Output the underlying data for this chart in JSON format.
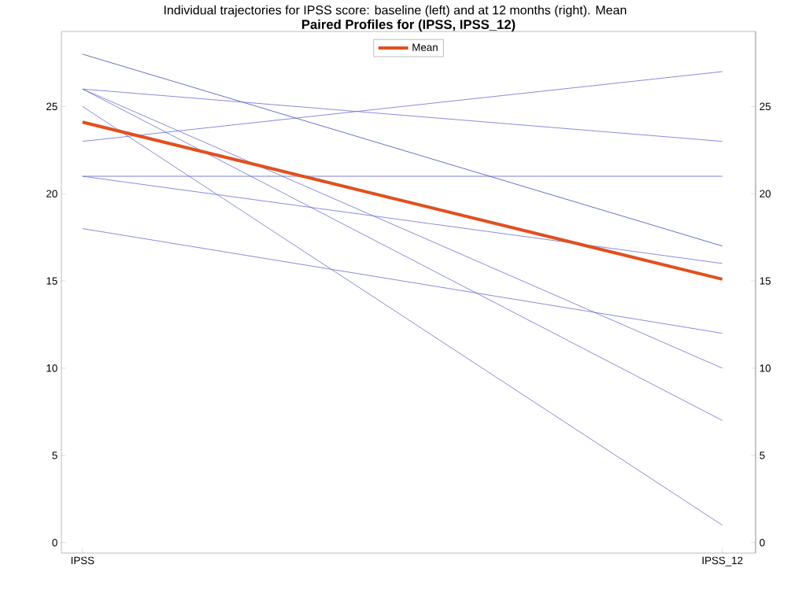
{
  "chart_data": {
    "type": "line",
    "title": "Paired Profiles for (IPSS, IPSS_12)",
    "annotations": [
      "Individual trajectories for IPSS score: baseline (left) and at 12 months (right). Mean"
    ],
    "categories": [
      "IPSS",
      "IPSS_12"
    ],
    "series": [
      {
        "color": "#3d4eb8",
        "values": [
          28,
          17
        ]
      },
      {
        "color": "#6a6fd0",
        "values": [
          26,
          23
        ]
      },
      {
        "color": "#6a6fd0",
        "values": [
          26,
          10
        ]
      },
      {
        "color": "#6a6fd0",
        "values": [
          26,
          7
        ]
      },
      {
        "color": "#6a6fd0",
        "values": [
          25,
          1
        ]
      },
      {
        "color": "#6a6fd0",
        "values": [
          23,
          27
        ]
      },
      {
        "color": "#5a62d0",
        "values": [
          21,
          21
        ]
      },
      {
        "color": "#6a6fd0",
        "values": [
          21,
          16
        ]
      },
      {
        "color": "#6a6fd0",
        "values": [
          18,
          12
        ]
      },
      {
        "name": "Mean",
        "color": "#e0501e",
        "values": [
          24.1,
          15.1
        ]
      }
    ],
    "ylim": [
      -0.6,
      29.3
    ],
    "yticks": [
      0,
      5,
      10,
      15,
      20,
      25
    ],
    "y2lim": [
      -0.6,
      29.3
    ],
    "y2ticks": [
      0,
      5,
      10,
      15,
      20,
      25
    ],
    "legend": "top"
  }
}
